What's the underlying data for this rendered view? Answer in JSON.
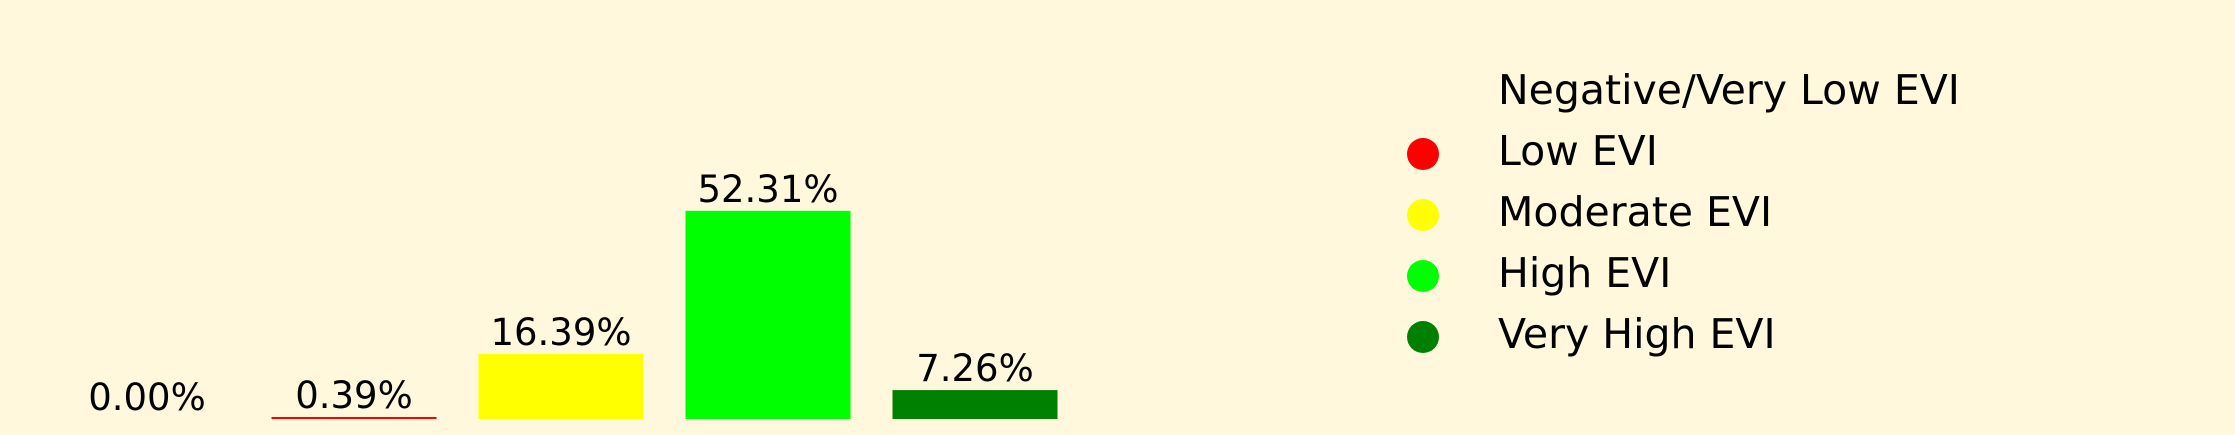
{
  "chart_data": {
    "type": "bar",
    "categories": [
      "Negative/Very Low EVI",
      "Low EVI",
      "Moderate EVI",
      "High EVI",
      "Very High EVI"
    ],
    "values": [
      0.0,
      0.39,
      16.39,
      52.31,
      7.26
    ],
    "data_labels": [
      "0.00%",
      "0.39%",
      "16.39%",
      "52.31%",
      "7.26%"
    ],
    "colors": [
      "#8B0000",
      "#FF0000",
      "#FFFF00",
      "#00FF00",
      "#008000"
    ],
    "legend": {
      "placement": "right",
      "entries": [
        {
          "label": "Negative/Very Low EVI",
          "color": "#8B0000",
          "marker_visible": false
        },
        {
          "label": "Low EVI",
          "color": "#FF0000",
          "marker_visible": true
        },
        {
          "label": "Moderate EVI",
          "color": "#FFFF00",
          "marker_visible": true
        },
        {
          "label": "High EVI",
          "color": "#00FF00",
          "marker_visible": true
        },
        {
          "label": "Very High EVI",
          "color": "#008000",
          "marker_visible": true
        }
      ]
    },
    "ylim": [
      0,
      70
    ],
    "grid": false,
    "axes_visible": false
  }
}
